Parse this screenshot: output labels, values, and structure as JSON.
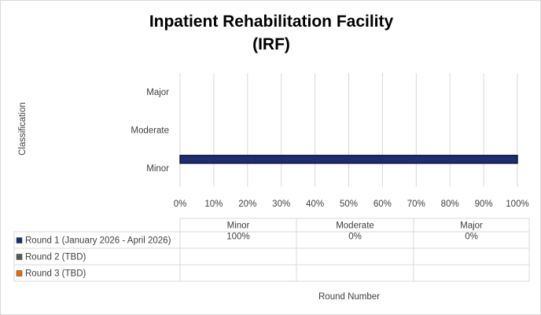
{
  "chart_data": {
    "type": "bar",
    "orientation": "horizontal",
    "title": "Inpatient Rehabilitation Facility (IRF)",
    "x_label": "Round Number",
    "y_label": "Classification",
    "categories": [
      "Minor",
      "Moderate",
      "Major"
    ],
    "series": [
      {
        "name": "Round 1 (January 2026 - April 2026)",
        "color": "#1f2d6e",
        "values": [
          100,
          0,
          0
        ],
        "value_labels": [
          "100%",
          "0%",
          "0%"
        ]
      },
      {
        "name": "Round 2 (TBD)",
        "color": "#595959",
        "values": [
          null,
          null,
          null
        ]
      },
      {
        "name": "Round 3 (TBD)",
        "color": "#e36c0a",
        "values": [
          null,
          null,
          null
        ]
      }
    ],
    "xlim": [
      0,
      100
    ],
    "xticks": [
      {
        "value": 0,
        "label": "0%"
      },
      {
        "value": 10,
        "label": "10%"
      },
      {
        "value": 20,
        "label": "20%"
      },
      {
        "value": 30,
        "label": "30%"
      },
      {
        "value": 40,
        "label": "40%"
      },
      {
        "value": 50,
        "label": "50%"
      },
      {
        "value": 60,
        "label": "60%"
      },
      {
        "value": 70,
        "label": "70%"
      },
      {
        "value": 80,
        "label": "80%"
      },
      {
        "value": 90,
        "label": "90%"
      },
      {
        "value": 100,
        "label": "100%"
      }
    ],
    "grid": true,
    "data_table": true
  }
}
